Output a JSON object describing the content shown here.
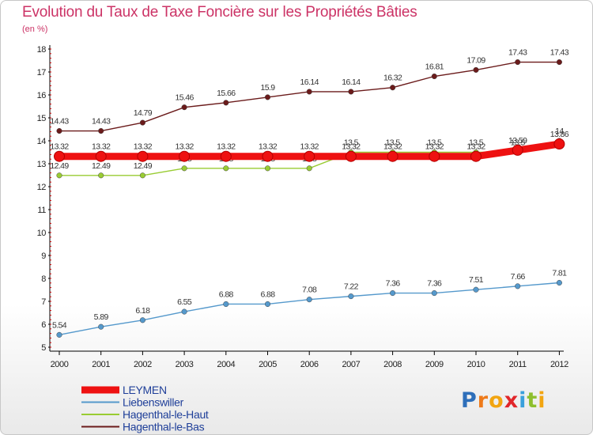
{
  "chart_data": {
    "type": "line",
    "title": "Evolution du Taux de Taxe Foncière sur les Propriétés Bâties",
    "ylabel": "(en %)",
    "xlabel": "",
    "ylim": [
      5,
      18
    ],
    "yticks": [
      5,
      6,
      7,
      8,
      9,
      10,
      11,
      12,
      13,
      14,
      15,
      16,
      17,
      18
    ],
    "grid": false,
    "legend_position": "bottom-left",
    "x": [
      "2000",
      "2001",
      "2002",
      "2003",
      "2004",
      "2005",
      "2006",
      "2007",
      "2008",
      "2009",
      "2010",
      "2011",
      "2012"
    ],
    "series": [
      {
        "name": "Hagenthal-le-Bas",
        "color": "#6b1b1b",
        "values": [
          14.43,
          14.43,
          14.79,
          15.46,
          15.66,
          15.9,
          16.14,
          16.14,
          16.32,
          16.81,
          17.09,
          17.43,
          17.43
        ],
        "labels": [
          "14.43",
          "14.43",
          "14.79",
          "15.46",
          "15.66",
          "15.9",
          "16.14",
          "16.14",
          "16.32",
          "16.81",
          "17.09",
          "17.43",
          "17.43"
        ]
      },
      {
        "name": "Hagenthal-le-Haut",
        "color": "#99cc33",
        "values": [
          12.49,
          12.49,
          12.49,
          12.8,
          12.8,
          12.8,
          12.8,
          13.5,
          13.5,
          13.5,
          13.5,
          13.5,
          14.0
        ],
        "labels": [
          "12.49",
          "12.49",
          "12.49",
          "12.8",
          "12.8",
          "12.8",
          "12.8",
          "13.5",
          "13.5",
          "13.5",
          "13.5",
          "13.5",
          "14"
        ]
      },
      {
        "name": "Liebenswiller",
        "color": "#5599cc",
        "values": [
          5.54,
          5.89,
          6.18,
          6.55,
          6.88,
          6.88,
          7.08,
          7.22,
          7.36,
          7.36,
          7.51,
          7.66,
          7.81
        ],
        "labels": [
          "5.54",
          "5.89",
          "6.18",
          "6.55",
          "6.88",
          "6.88",
          "7.08",
          "7.22",
          "7.36",
          "7.36",
          "7.51",
          "7.66",
          "7.81"
        ]
      },
      {
        "name": "LEYMEN",
        "color": "#ee1111",
        "values": [
          13.32,
          13.32,
          13.32,
          13.32,
          13.32,
          13.32,
          13.32,
          13.32,
          13.32,
          13.32,
          13.32,
          13.59,
          13.86
        ],
        "labels": [
          "13.32",
          "13.32",
          "13.32",
          "13.32",
          "13.32",
          "13.32",
          "13.32",
          "13.32",
          "13.32",
          "13.32",
          "13.32",
          "13.59",
          "13.86"
        ]
      }
    ],
    "legend_order": [
      "LEYMEN",
      "Liebenswiller",
      "Hagenthal-le-Haut",
      "Hagenthal-le-Bas"
    ]
  },
  "brand": {
    "letters": [
      "P",
      "r",
      "o",
      "x",
      "i",
      "t",
      "i"
    ],
    "colors": [
      "#2e6fba",
      "#ee7a1a",
      "#f2a511",
      "#e1262a",
      "#3aa0dc",
      "#8dbf2e",
      "#f2a511"
    ]
  }
}
